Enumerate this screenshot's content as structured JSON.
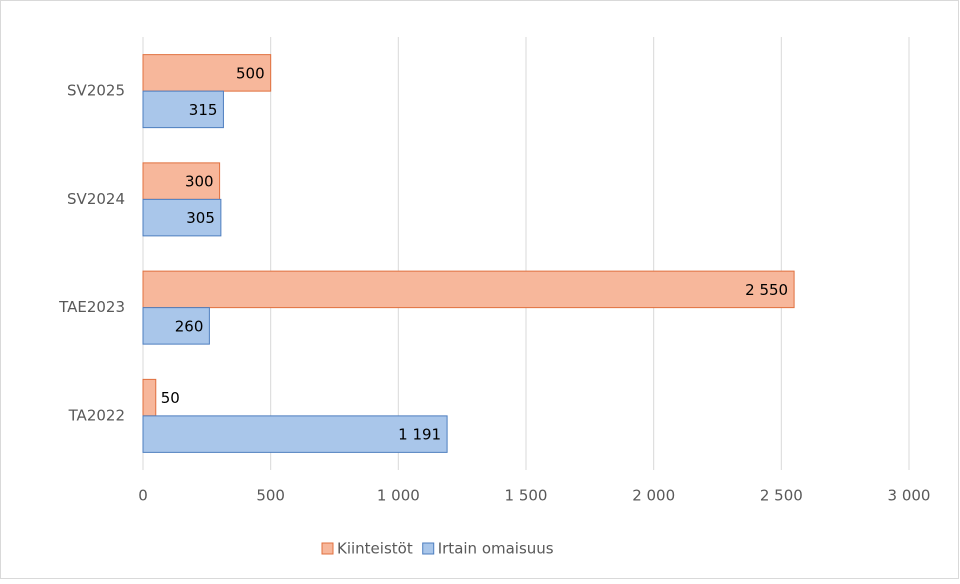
{
  "chart_data": {
    "type": "hbar",
    "categories": [
      "TA2022",
      "TAE2023",
      "SV2024",
      "SV2025"
    ],
    "series": [
      {
        "name": "Kiinteistöt",
        "color": "#f7b79b",
        "edge": "#e0703f",
        "values": [
          50,
          2550,
          300,
          500
        ],
        "value_labels": [
          "50",
          "2 550",
          "300",
          "500"
        ]
      },
      {
        "name": "Irtain omaisuus",
        "color": "#a9c6ea",
        "edge": "#4d7ebf",
        "values": [
          1191,
          260,
          305,
          315
        ],
        "value_labels": [
          "1 191",
          "260",
          "305",
          "315"
        ]
      }
    ],
    "xlim": [
      0,
      3000
    ],
    "xticks": [
      0,
      500,
      {
        "value": 1000,
        "label": "1 000"
      },
      {
        "value": 1500,
        "label": "1 500"
      },
      {
        "value": 2000,
        "label": "2 000"
      },
      {
        "value": 2500,
        "label": "2 500"
      },
      {
        "value": 3000,
        "label": "3 000"
      }
    ],
    "grid": true,
    "legend": "bottom"
  }
}
